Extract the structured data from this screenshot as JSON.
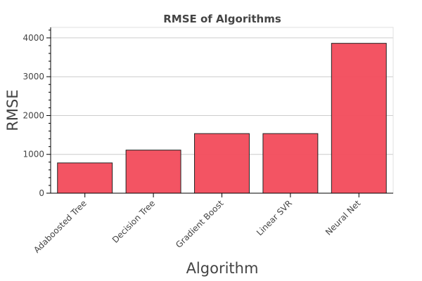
{
  "chart_data": {
    "type": "bar",
    "title": "RMSE of Algorithms",
    "xlabel": "Algorithm",
    "ylabel": "RMSE",
    "categories": [
      "Adaboosted Tree",
      "Decision Tree",
      "Gradient Boost",
      "Linear SVR",
      "Neural Net"
    ],
    "values": [
      780,
      1110,
      1535,
      1535,
      3860
    ],
    "ylim": [
      0,
      4270
    ],
    "yticks": [
      0,
      1000,
      2000,
      3000,
      4000
    ],
    "grid": true,
    "bar_color": "#f24b5b"
  }
}
